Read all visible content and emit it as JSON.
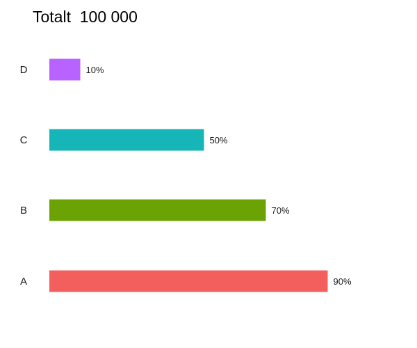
{
  "chart_data": {
    "type": "bar",
    "orientation": "horizontal",
    "title": "Totalt  100 000",
    "xlabel": "",
    "ylabel": "",
    "categories": [
      "A",
      "B",
      "C",
      "D"
    ],
    "values": [
      90,
      70,
      50,
      10
    ],
    "value_labels": [
      "90%",
      "70%",
      "50%",
      "10%"
    ],
    "colors": [
      "#f35f5c",
      "#6aa303",
      "#15b5b8",
      "#b863ff"
    ],
    "xlim": [
      0,
      100
    ],
    "grid": false,
    "legend": "none"
  }
}
